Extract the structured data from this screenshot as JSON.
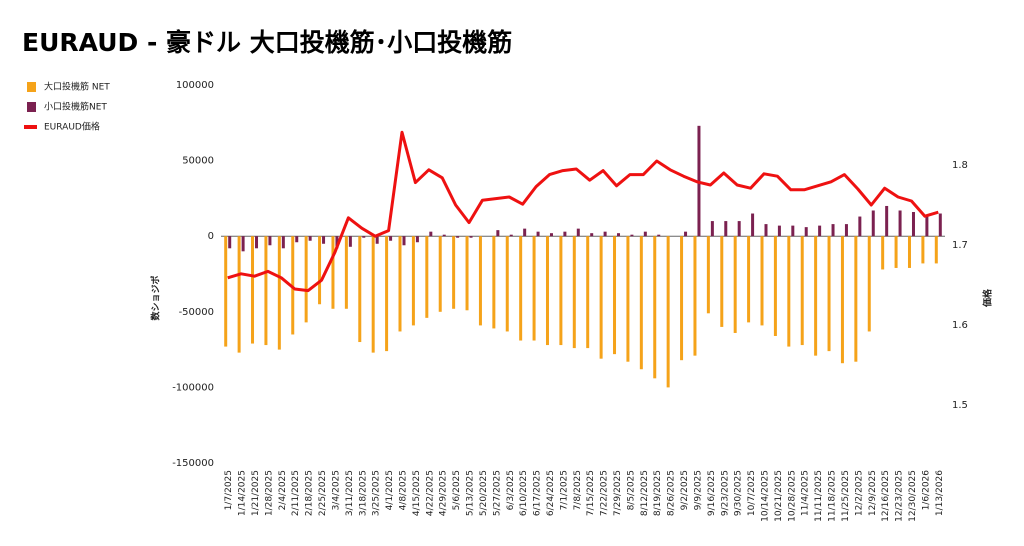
{
  "chart_data": {
    "type": "bar-line",
    "title": "EURAUD - 豪ドル 大口投機筋･小口投機筋",
    "y_label": "数ショジポ",
    "y2_label": "価格",
    "legend": "left",
    "categories": [
      "1/7/2025",
      "1/14/2025",
      "1/21/2025",
      "1/28/2025",
      "2/4/2025",
      "2/11/2025",
      "2/18/2025",
      "2/25/2025",
      "3/4/2025",
      "3/11/2025",
      "3/18/2025",
      "3/25/2025",
      "4/1/2025",
      "4/8/2025",
      "4/15/2025",
      "4/22/2025",
      "4/29/2025",
      "5/6/2025",
      "5/13/2025",
      "5/20/2025",
      "5/27/2025",
      "6/3/2025",
      "6/10/2025",
      "6/17/2025",
      "6/24/2025",
      "7/1/2025",
      "7/8/2025",
      "7/15/2025",
      "7/22/2025",
      "7/29/2025",
      "8/5/2025",
      "8/12/2025",
      "8/19/2025",
      "8/26/2025",
      "9/2/2025",
      "9/9/2025",
      "9/16/2025",
      "9/23/2025",
      "9/30/2025",
      "10/7/2025",
      "10/14/2025",
      "10/21/2025",
      "10/28/2025",
      "11/4/2025",
      "11/11/2025",
      "11/18/2025",
      "11/25/2025",
      "12/2/2025",
      "12/9/2025",
      "12/16/2025",
      "12/23/2025",
      "12/30/2025",
      "1/6/2026",
      "1/13/2026"
    ],
    "series": [
      {
        "name": "大口投機筋  NET",
        "type": "bar",
        "color": "#f5a31a",
        "values": [
          -73000,
          -77000,
          -71000,
          -72000,
          -75000,
          -65000,
          -57000,
          -45000,
          -48000,
          -48000,
          -70000,
          -77000,
          -76000,
          -63000,
          -59000,
          -54000,
          -50000,
          -48000,
          -49000,
          -59000,
          -61000,
          -63000,
          -69000,
          -69000,
          -72000,
          -72000,
          -74000,
          -74000,
          -81000,
          -78000,
          -83000,
          -88000,
          -94000,
          -100000,
          -82000,
          -79000,
          -51000,
          -60000,
          -64000,
          -57000,
          -59000,
          -66000,
          -73000,
          -72000,
          -79000,
          -76000,
          -84000,
          -83000,
          -63000,
          -22000,
          -21000,
          -21000,
          -18000,
          -18000
        ]
      },
      {
        "name": "小口投機筋NET",
        "type": "bar",
        "color": "#7b2150",
        "values": [
          -8000,
          -10000,
          -8000,
          -6000,
          -8000,
          -4000,
          -3000,
          -5000,
          -8000,
          -7000,
          -1000,
          -5000,
          -3000,
          -6000,
          -4000,
          3000,
          1000,
          -1000,
          -1000,
          0,
          4000,
          1000,
          5000,
          3000,
          2000,
          3000,
          5000,
          2000,
          3000,
          2000,
          1000,
          3000,
          1000,
          0,
          3000,
          73000,
          10000,
          10000,
          10000,
          15000,
          8000,
          7000,
          7000,
          6000,
          7000,
          8000,
          8000,
          13000,
          17000,
          20000,
          17000,
          16000,
          14000,
          15000
        ]
      },
      {
        "name": "EURAUD価格",
        "type": "line",
        "axis": "y2",
        "color": "#ee1111",
        "values": [
          1.659,
          1.664,
          1.661,
          1.667,
          1.659,
          1.645,
          1.643,
          1.656,
          1.691,
          1.734,
          1.721,
          1.711,
          1.718,
          1.841,
          1.778,
          1.794,
          1.784,
          1.75,
          1.728,
          1.756,
          1.758,
          1.76,
          1.751,
          1.773,
          1.788,
          1.793,
          1.795,
          1.781,
          1.793,
          1.774,
          1.788,
          1.788,
          1.805,
          1.794,
          1.786,
          1.779,
          1.775,
          1.79,
          1.775,
          1.771,
          1.789,
          1.786,
          1.769,
          1.769,
          1.774,
          1.779,
          1.788,
          1.77,
          1.75,
          1.771,
          1.76,
          1.755,
          1.736,
          1.741
        ]
      }
    ],
    "ylim": [
      -150000,
      100000
    ],
    "yticks": [
      -150000,
      -100000,
      -50000,
      0,
      50000,
      100000
    ],
    "y2lim": [
      1.4275,
      1.9
    ],
    "y2ticks": [
      1.5,
      1.6,
      1.7,
      1.8
    ],
    "grid": false
  }
}
